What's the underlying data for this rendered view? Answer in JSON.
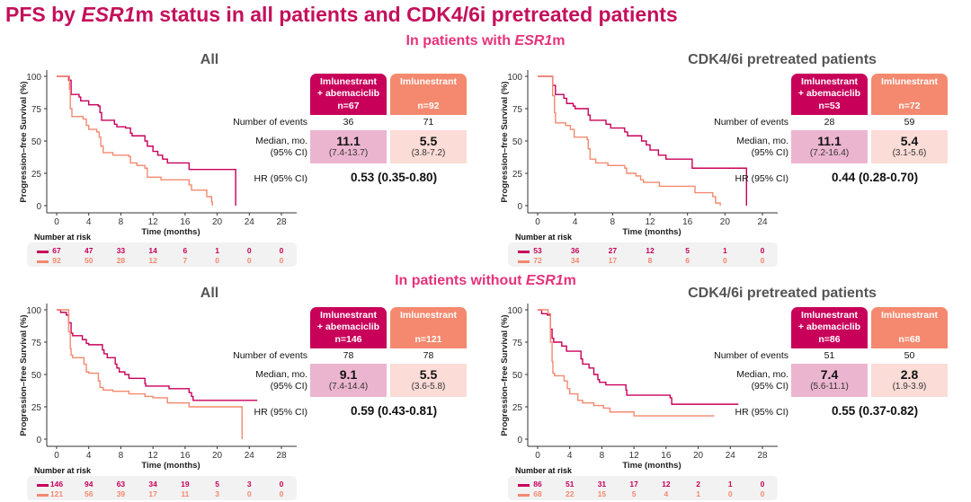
{
  "title": {
    "pre": "PFS by ",
    "em": "ESR1",
    "post": "m status in all patients and CDK4/6i pretreated patients"
  },
  "sections": [
    {
      "pre": "In patients with ",
      "em": "ESR1",
      "post": "m"
    },
    {
      "pre": "In patients without ",
      "em": "ESR1",
      "post": "m"
    }
  ],
  "colors": {
    "title": "#c4105b",
    "section": "#e5337a",
    "combo": "#c8005a",
    "mono": "#f4896f",
    "combo_light": "#ecb5cf",
    "mono_light": "#fbdcd7"
  },
  "labels": {
    "ylabel": "Progression–free Survival (%)",
    "xlabel": "Time (months)",
    "number_at_risk": "Number at risk",
    "events": "Number of events",
    "median": "Median, mo.",
    "ci": "(95% CI)",
    "hr": "HR (95% CI)",
    "combo_line1": "Imlunestrant",
    "combo_line2": "+ abemaciclib",
    "mono_line1": "Imlunestrant"
  },
  "chart_data": [
    {
      "type": "line",
      "title": "All",
      "section": "In patients with ESR1m",
      "xlabel": "Time (months)",
      "ylabel": "Progression–free Survival (%)",
      "xticks": [
        0,
        4,
        8,
        12,
        16,
        20,
        24,
        28
      ],
      "yticks": [
        0,
        25,
        50,
        75,
        100
      ],
      "ylim": [
        0,
        100
      ],
      "xlim": [
        0,
        28
      ],
      "series": [
        {
          "key": "combo",
          "points": [
            [
              0,
              100
            ],
            [
              1.5,
              97
            ],
            [
              1.8,
              86
            ],
            [
              2.8,
              84
            ],
            [
              3,
              81
            ],
            [
              4,
              78
            ],
            [
              5.2,
              77
            ],
            [
              5.4,
              72
            ],
            [
              5.6,
              66
            ],
            [
              7.2,
              63
            ],
            [
              7.5,
              61
            ],
            [
              8.6,
              60
            ],
            [
              9.2,
              56
            ],
            [
              9.4,
              54
            ],
            [
              11,
              50
            ],
            [
              11.3,
              46
            ],
            [
              12,
              42
            ],
            [
              12.6,
              39
            ],
            [
              13.2,
              36
            ],
            [
              13.8,
              33
            ],
            [
              16.5,
              28
            ],
            [
              22.3,
              28
            ],
            [
              22.3,
              0
            ]
          ]
        },
        {
          "key": "mono",
          "points": [
            [
              0,
              100
            ],
            [
              1.6,
              90
            ],
            [
              1.7,
              75
            ],
            [
              1.9,
              69
            ],
            [
              3.3,
              67
            ],
            [
              3.7,
              62
            ],
            [
              4,
              59
            ],
            [
              5,
              57
            ],
            [
              5.3,
              53
            ],
            [
              5.5,
              46
            ],
            [
              5.8,
              41
            ],
            [
              7,
              39
            ],
            [
              9,
              38
            ],
            [
              9.2,
              33
            ],
            [
              10,
              31
            ],
            [
              11,
              29
            ],
            [
              11.3,
              22
            ],
            [
              13,
              20
            ],
            [
              16.5,
              16
            ],
            [
              16.8,
              12
            ],
            [
              18.7,
              7
            ],
            [
              19.3,
              3
            ],
            [
              19.4,
              0
            ]
          ]
        }
      ],
      "table": {
        "combo_n": "n=67",
        "mono_n": "n=92",
        "combo_events": "36",
        "mono_events": "71",
        "combo_median": "11.1",
        "combo_ci": "(7.4-13.7)",
        "mono_median": "5.5",
        "mono_ci": "(3.8-7.2)",
        "hr": "0.53 (0.35-0.80)"
      },
      "at_risk": {
        "combo": [
          "67",
          "47",
          "33",
          "14",
          "6",
          "1",
          "0",
          "0"
        ],
        "mono": [
          "92",
          "50",
          "28",
          "12",
          "7",
          "0",
          "0",
          "0"
        ]
      }
    },
    {
      "type": "line",
      "title": "CDK4/6i pretreated patients",
      "section": "In patients with ESR1m",
      "xlabel": "Time (months)",
      "ylabel": "Progression–free Survival (%)",
      "xticks": [
        0,
        4,
        8,
        12,
        16,
        20,
        24
      ],
      "yticks": [
        0,
        25,
        50,
        75,
        100
      ],
      "ylim": [
        0,
        100
      ],
      "xlim": [
        0,
        24
      ],
      "series": [
        {
          "key": "combo",
          "points": [
            [
              0,
              100
            ],
            [
              1.6,
              93
            ],
            [
              1.9,
              86
            ],
            [
              2.8,
              83
            ],
            [
              3.1,
              79
            ],
            [
              3.8,
              77
            ],
            [
              4,
              75
            ],
            [
              5.4,
              70
            ],
            [
              5.6,
              66
            ],
            [
              7.3,
              63
            ],
            [
              7.8,
              60
            ],
            [
              9.3,
              57
            ],
            [
              9.6,
              54
            ],
            [
              11.1,
              50
            ],
            [
              11.6,
              47
            ],
            [
              12,
              43
            ],
            [
              12.9,
              39
            ],
            [
              13.7,
              36
            ],
            [
              16.5,
              29
            ],
            [
              22.3,
              29
            ],
            [
              22.3,
              0
            ]
          ]
        },
        {
          "key": "mono",
          "points": [
            [
              0,
              100
            ],
            [
              1.6,
              85
            ],
            [
              1.8,
              72
            ],
            [
              1.9,
              64
            ],
            [
              3,
              62
            ],
            [
              3.5,
              59
            ],
            [
              3.9,
              53
            ],
            [
              5.3,
              51
            ],
            [
              5.4,
              44
            ],
            [
              5.6,
              36
            ],
            [
              6.2,
              33
            ],
            [
              7.5,
              31
            ],
            [
              9.3,
              29
            ],
            [
              9.5,
              25
            ],
            [
              10.5,
              23
            ],
            [
              11,
              20
            ],
            [
              11.3,
              18
            ],
            [
              13,
              15
            ],
            [
              16.5,
              15
            ],
            [
              16.8,
              10
            ],
            [
              18.7,
              7
            ],
            [
              19,
              2
            ],
            [
              19.5,
              0
            ]
          ]
        }
      ],
      "table": {
        "combo_n": "n=53",
        "mono_n": "n=72",
        "combo_events": "28",
        "mono_events": "59",
        "combo_median": "11.1",
        "combo_ci": "(7.2-16.4)",
        "mono_median": "5.4",
        "mono_ci": "(3.1-5.6)",
        "hr": "0.44 (0.28-0.70)"
      },
      "at_risk": {
        "combo": [
          "53",
          "36",
          "27",
          "12",
          "5",
          "1",
          "0"
        ],
        "mono": [
          "72",
          "34",
          "17",
          "8",
          "6",
          "0",
          "0"
        ]
      }
    },
    {
      "type": "line",
      "title": "All",
      "section": "In patients without ESR1m",
      "xlabel": "Time (months)",
      "ylabel": "Progression–free Survival (%)",
      "xticks": [
        0,
        4,
        8,
        12,
        16,
        20,
        24,
        28
      ],
      "yticks": [
        0,
        25,
        50,
        75,
        100
      ],
      "ylim": [
        0,
        100
      ],
      "xlim": [
        0,
        28
      ],
      "series": [
        {
          "key": "combo",
          "points": [
            [
              0,
              100
            ],
            [
              0.5,
              98
            ],
            [
              1.2,
              96
            ],
            [
              1.5,
              90
            ],
            [
              1.8,
              82
            ],
            [
              2,
              80
            ],
            [
              3.2,
              77
            ],
            [
              3.7,
              74
            ],
            [
              4,
              73
            ],
            [
              5.7,
              69
            ],
            [
              5.9,
              66
            ],
            [
              6.3,
              63
            ],
            [
              7.3,
              58
            ],
            [
              7.5,
              55
            ],
            [
              7.8,
              52
            ],
            [
              8.5,
              50
            ],
            [
              9,
              47
            ],
            [
              9.5,
              47
            ],
            [
              11,
              43
            ],
            [
              11.1,
              41
            ],
            [
              14,
              39
            ],
            [
              16.5,
              36
            ],
            [
              16.8,
              33
            ],
            [
              17,
              30
            ],
            [
              17.3,
              30
            ],
            [
              25,
              30
            ]
          ]
        },
        {
          "key": "mono",
          "points": [
            [
              0,
              100
            ],
            [
              1.5,
              83
            ],
            [
              1.7,
              70
            ],
            [
              1.8,
              65
            ],
            [
              2,
              63
            ],
            [
              3.4,
              58
            ],
            [
              3.7,
              52
            ],
            [
              4,
              51
            ],
            [
              5.2,
              45
            ],
            [
              5.4,
              40
            ],
            [
              5.8,
              38
            ],
            [
              7,
              37
            ],
            [
              9,
              35
            ],
            [
              11,
              33
            ],
            [
              12,
              32
            ],
            [
              13.8,
              28
            ],
            [
              14,
              28
            ],
            [
              16.5,
              25
            ],
            [
              23.1,
              25
            ],
            [
              23.1,
              0
            ]
          ]
        }
      ],
      "table": {
        "combo_n": "n=146",
        "mono_n": "n=121",
        "combo_events": "78",
        "mono_events": "78",
        "combo_median": "9.1",
        "combo_ci": "(7.4-14.4)",
        "mono_median": "5.5",
        "mono_ci": "(3.6-5.8)",
        "hr": "0.59 (0.43-0.81)"
      },
      "at_risk": {
        "combo": [
          "146",
          "94",
          "63",
          "34",
          "19",
          "5",
          "3",
          "0"
        ],
        "mono": [
          "121",
          "56",
          "39",
          "17",
          "11",
          "3",
          "0",
          "0"
        ]
      }
    },
    {
      "type": "line",
      "title": "CDK4/6i pretreated patients",
      "section": "In patients without ESR1m",
      "xlabel": "Time (months)",
      "ylabel": "Progression–free Survival (%)",
      "xticks": [
        0,
        4,
        8,
        12,
        16,
        20,
        24,
        28
      ],
      "yticks": [
        0,
        25,
        50,
        75,
        100
      ],
      "ylim": [
        0,
        100
      ],
      "xlim": [
        0,
        28
      ],
      "series": [
        {
          "key": "combo",
          "points": [
            [
              0,
              100
            ],
            [
              0.5,
              97
            ],
            [
              1.2,
              96
            ],
            [
              1.6,
              85
            ],
            [
              1.8,
              78
            ],
            [
              2,
              75
            ],
            [
              3,
              72
            ],
            [
              3.6,
              68
            ],
            [
              4,
              68
            ],
            [
              5.4,
              62
            ],
            [
              5.6,
              58
            ],
            [
              6.4,
              55
            ],
            [
              7,
              50
            ],
            [
              7.5,
              46
            ],
            [
              7.7,
              44
            ],
            [
              8.5,
              42
            ],
            [
              9.3,
              42
            ],
            [
              11,
              38
            ],
            [
              11.1,
              34
            ],
            [
              11.5,
              34
            ],
            [
              16.5,
              32
            ],
            [
              16.7,
              27
            ],
            [
              16.9,
              27
            ],
            [
              25,
              27
            ]
          ]
        },
        {
          "key": "mono",
          "points": [
            [
              0,
              100
            ],
            [
              1.3,
              97
            ],
            [
              1.6,
              75
            ],
            [
              1.8,
              60
            ],
            [
              1.9,
              51
            ],
            [
              2.1,
              49
            ],
            [
              3.3,
              45
            ],
            [
              3.7,
              39
            ],
            [
              4,
              35
            ],
            [
              5,
              30
            ],
            [
              5.6,
              28
            ],
            [
              7,
              26
            ],
            [
              8.2,
              24
            ],
            [
              9,
              21
            ],
            [
              9.5,
              21
            ],
            [
              12,
              18
            ],
            [
              22,
              18
            ]
          ]
        }
      ],
      "table": {
        "combo_n": "n=86",
        "mono_n": "n=68",
        "combo_events": "51",
        "mono_events": "50",
        "combo_median": "7.4",
        "combo_ci": "(5.6-11.1)",
        "mono_median": "2.8",
        "mono_ci": "(1.9-3.9)",
        "hr": "0.55 (0.37-0.82)"
      },
      "at_risk": {
        "combo": [
          "86",
          "51",
          "31",
          "17",
          "12",
          "2",
          "1",
          "0"
        ],
        "mono": [
          "68",
          "22",
          "15",
          "5",
          "4",
          "1",
          "0",
          "0"
        ]
      }
    }
  ]
}
